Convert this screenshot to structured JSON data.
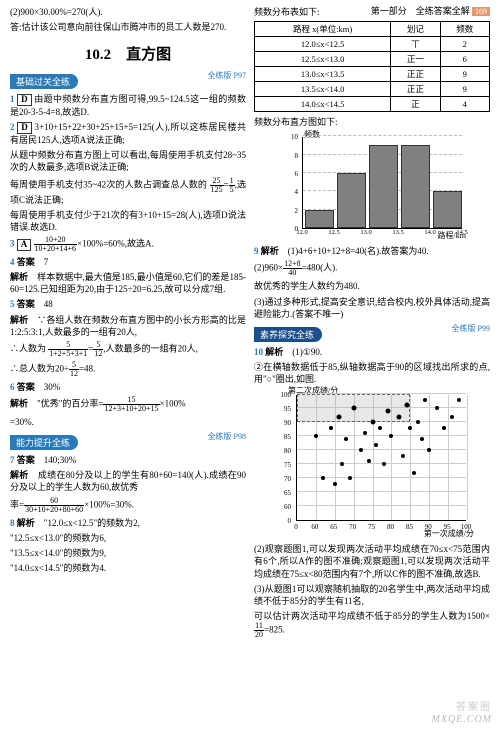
{
  "header": {
    "part": "第一部分　全练答案全解",
    "page": "169"
  },
  "left": {
    "intro1": "(2)900×30.00%=270(人).",
    "intro2": "答:估计该公司意向前往保山市腾冲市的员工人数是270.",
    "section_title": "10.2　直方图",
    "tagA": "基础过关全练",
    "refA": "全练版 P97",
    "q1": {
      "num": "1",
      "box": "D",
      "text": "由题中频数分布直方图可得,99.5~124.5这一组的频数是20-3-5-4=8,故选D."
    },
    "q2": {
      "num": "2",
      "box": "D",
      "l1": "3+10+15+22+30+25+15+5=125(人),所以这栋居民楼共有居民125人,选项A说法正确;",
      "l2": "从题中频数分布直方图上可以看出,每周使用手机支付28~35次的人数最多,选项B说法正确;",
      "l3a": "每周使用手机支付35~42次的人数占调查总人数的",
      "frac3": {
        "n": "25",
        "d": "125"
      },
      "frac3b": {
        "n": "1",
        "d": "5"
      },
      "l3b": ",选项C说法正确;",
      "l4": "每周使用手机支付少于21次的有3+10+15=28(人),选项D说法错误.故选D."
    },
    "q3": {
      "num": "3",
      "box": "A",
      "frac": {
        "n": "10+20",
        "d": "10+20+14+6"
      },
      "tail": "×100%=60%,故选A."
    },
    "q4": {
      "num": "4",
      "ans": "7",
      "exp": "样本数据中,最大值是185,最小值是60,它们的差是185-60=125.已知组距为20,由于125÷20=6.25,故可以分成7组."
    },
    "q5": {
      "num": "5",
      "ans": "48",
      "exp1": "∵各组人数在频数分布直方图中的小长方形高的比是1:2:5:3:1,人数最多的一组有20人,",
      "exp2a": "∴人数为",
      "frac5": {
        "n": "5",
        "d": "1+2+5+3+1"
      },
      "frac5b": {
        "n": "5",
        "d": "12"
      },
      "exp2b": ",人数最多的一组有20人,",
      "exp3a": "∴总人数为20÷",
      "frac5c": {
        "n": "5",
        "d": "12"
      },
      "exp3b": "=48."
    },
    "q6": {
      "num": "6",
      "ans": "30%",
      "exp_a": "\"优秀\"的百分率=",
      "frac6": {
        "n": "15",
        "d": "12+3+10+20+15"
      },
      "multstr": "×100%",
      "exp_b": "=30%."
    },
    "tagB": "能力提升全练",
    "refB": "全练版 P98",
    "q7": {
      "num": "7",
      "ans": "140;30%",
      "exp1": "成绩在80分及以上的学生有80+60=140(人).成绩在90分及以上的学生人数为60,故优秀",
      "frac7": {
        "n": "60",
        "d": "30+10+20+80+60"
      },
      "exp2": "×100%=30%."
    },
    "q8": {
      "num": "8",
      "l1": "\"12.0≤x<12.5\"的频数为2,",
      "l2": "\"12.5≤x<13.0\"的频数为6,",
      "l3": "\"13.5≤x<14.0\"的频数为9,",
      "l4": "\"14.0≤x<14.5\"的频数为4."
    }
  },
  "right": {
    "tbl_title": "频数分布表如下:",
    "table": {
      "headers": [
        "路程 x(单位:km)",
        "划记",
        "频数"
      ],
      "rows": [
        [
          "12.0≤x<12.5",
          "丅",
          "2"
        ],
        [
          "12.5≤x<13.0",
          "正一",
          "6"
        ],
        [
          "13.0≤x<13.5",
          "正正",
          "9"
        ],
        [
          "13.5≤x<14.0",
          "正正",
          "9"
        ],
        [
          "14.0≤x<14.5",
          "正",
          "4"
        ]
      ]
    },
    "hist_title": "频数分布直方图如下:",
    "histogram": {
      "ylabel": "频数",
      "xlabel": "路程/km",
      "yticks": [
        "0",
        "2",
        "4",
        "6",
        "8",
        "10"
      ],
      "ymax": 10,
      "xticks": [
        "12.0",
        "12.5",
        "13.0",
        "13.5",
        "14.0",
        "14.5"
      ],
      "bars": [
        2,
        6,
        9,
        9,
        4
      ],
      "bar_color": "#808080",
      "grid_color": "#cccccc"
    },
    "q9": {
      "num": "9",
      "l1": "(1)4+6+10+12+8=40(名).故答案为40.",
      "l2a": "(2)960×",
      "frac9": {
        "n": "12+8",
        "d": "40"
      },
      "l2b": "=480(人).",
      "l3": "故优秀的学生人数约为480.",
      "l4": "(3)通过多种形式,提高安全意识,结合校内,校外具体活动,提高避险能力.(答案不唯一)"
    },
    "tagC": "素养探究全练",
    "refC": "全练版 P99",
    "q10": {
      "num": "10",
      "l1": "(1)①90.",
      "l2": "②在横轴数据低于85,纵轴数据高于90的区域找出所求的点,用\"○\"圈出,如图.",
      "scatter": {
        "y_title": "第二次成绩/分",
        "x_title": "第一次成绩/分",
        "xticks": [
          "0",
          "60",
          "65",
          "70",
          "75",
          "80",
          "85",
          "90",
          "95",
          "100"
        ],
        "yticks": [
          "0",
          "60",
          "65",
          "70",
          "75",
          "80",
          "85",
          "90",
          "95",
          "100"
        ],
        "xlim": [
          55,
          100
        ],
        "ylim": [
          55,
          100
        ],
        "filled": [
          [
            60,
            85
          ],
          [
            62,
            70
          ],
          [
            64,
            88
          ],
          [
            65,
            68
          ],
          [
            66,
            92
          ],
          [
            67,
            75
          ],
          [
            68,
            84
          ],
          [
            69,
            70
          ],
          [
            70,
            95
          ],
          [
            72,
            80
          ],
          [
            73,
            86
          ],
          [
            74,
            76
          ],
          [
            75,
            90
          ],
          [
            76,
            82
          ],
          [
            77,
            88
          ],
          [
            78,
            75
          ],
          [
            79,
            94
          ],
          [
            80,
            85
          ],
          [
            82,
            92
          ],
          [
            83,
            78
          ],
          [
            84,
            96
          ],
          [
            85,
            88
          ],
          [
            86,
            72
          ],
          [
            87,
            90
          ],
          [
            88,
            84
          ],
          [
            89,
            98
          ],
          [
            90,
            80
          ],
          [
            92,
            95
          ],
          [
            94,
            88
          ],
          [
            96,
            92
          ],
          [
            98,
            98
          ]
        ],
        "circled": [
          [
            66,
            92
          ],
          [
            70,
            95
          ],
          [
            75,
            90
          ],
          [
            79,
            94
          ],
          [
            82,
            92
          ],
          [
            84,
            96
          ]
        ],
        "highlight": {
          "x1": 55,
          "x2": 85,
          "y1": 90,
          "y2": 100
        }
      },
      "p1": "(2)观察题图1,可以发现两次活动平均成绩在70≤x<75范围内有6个,所以A作的图不准确;观察题图1,可以发现两次活动平均成绩在75≤x<80范围内有7个,所以C作的图不准确,故选B.",
      "p2": "(3)从题图1可以观察随机抽取的20名学生中,两次活动平均成绩不低于85分的学生有11名,",
      "p3a": "可以估计两次活动平均成绩不低于85分的学生",
      "frac10": {
        "n": "11",
        "d": "20"
      },
      "p3b": "人数为1500×",
      "p3c": "=825."
    }
  },
  "watermark1": "答案圈",
  "watermark2": "MXQE.COM"
}
